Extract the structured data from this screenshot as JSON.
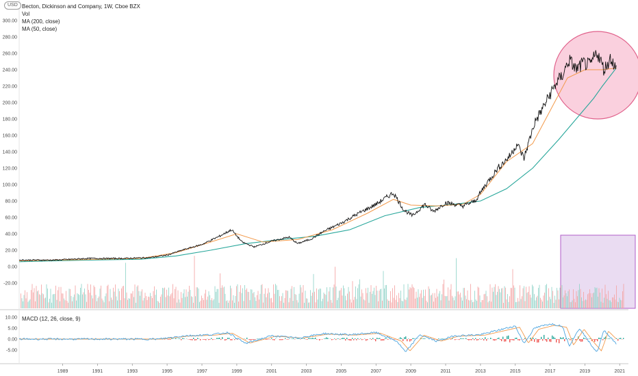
{
  "header": {
    "currency": "USD",
    "title": "Becton, Dickinson and Company, 1W, Cboe BZX",
    "vol_label": "Vol",
    "ma200_label": "MA (200, close)",
    "ma50_label": "MA (50, close)",
    "macd_label": "MACD (12, 26, close, 9)"
  },
  "colors": {
    "price": "#111111",
    "ma200": "#26a69a",
    "ma50": "#f2994a",
    "vol_up": "#8fd3c8",
    "vol_down": "#f4a3a3",
    "macd": "#4aa3df",
    "signal": "#f2994a",
    "hist_up": "#26a69a",
    "hist_down": "#ef5350",
    "circle_fill": "#f8bcd0",
    "circle_stroke": "#e0608a",
    "box_fill": "#dcc4ea",
    "box_stroke": "#b05cc8"
  },
  "chart_data": {
    "type": "line",
    "x_ticks": [
      "1989",
      "1991",
      "1993",
      "1995",
      "1997",
      "1999",
      "2001",
      "2003",
      "2005",
      "2007",
      "2009",
      "2011",
      "2013",
      "2015",
      "2017",
      "2019",
      "2021"
    ],
    "price_y_ticks": [
      "300.00",
      "280.00",
      "260.00",
      "240.00",
      "220.00",
      "200.00",
      "180.00",
      "160.00",
      "140.00",
      "120.00",
      "100.00",
      "80.00",
      "60.00",
      "40.00",
      "20.00",
      "0.00",
      "-20.00"
    ],
    "macd_y_ticks": [
      "10.00",
      "5.00",
      "0.00",
      "-5.00"
    ],
    "price_ylim": [
      -20,
      300
    ],
    "macd_ylim": [
      -10,
      10
    ],
    "xlim": [
      1987.0,
      2022.0
    ],
    "series": [
      {
        "name": "Becton, Dickinson and Company",
        "x": [
          1987.0,
          1989.0,
          1991.0,
          1993.0,
          1994.5,
          1995.5,
          1996.5,
          1997.5,
          1998.5,
          1999.2,
          1999.8,
          2000.5,
          2001.5,
          2002.5,
          2003.0,
          2003.8,
          2004.5,
          2005.5,
          2006.5,
          2007.5,
          2008.5,
          2009.1,
          2009.6,
          2010.3,
          2010.8,
          2011.5,
          2012.5,
          2013.2,
          2013.8,
          2014.5,
          2015.2,
          2015.6,
          2016.0,
          2016.6,
          2017.0,
          2017.5,
          2017.9,
          2018.2,
          2018.6,
          2019.0,
          2019.4,
          2019.8,
          2020.2,
          2020.6,
          2021.0,
          2021.3
        ],
        "values": [
          8,
          8,
          10,
          10,
          11,
          14,
          21,
          27,
          37,
          45,
          30,
          24,
          31,
          36,
          28,
          34,
          43,
          53,
          65,
          76,
          90,
          69,
          62,
          76,
          67,
          78,
          74,
          80,
          100,
          120,
          135,
          150,
          132,
          175,
          190,
          210,
          225,
          233,
          252,
          240,
          248,
          245,
          262,
          240,
          255,
          240
        ]
      },
      {
        "name": "MA (200, close)",
        "x": [
          1987.0,
          1991.0,
          1994.0,
          1996.0,
          1998.0,
          2000.0,
          2002.0,
          2004.0,
          2006.0,
          2008.0,
          2010.0,
          2012.0,
          2013.5,
          2015.0,
          2016.5,
          2018.0,
          2019.0,
          2020.0,
          2020.5,
          2021.3
        ],
        "values": [
          6,
          8,
          9,
          13,
          20,
          28,
          33,
          37,
          45,
          62,
          72,
          76,
          80,
          95,
          120,
          155,
          180,
          205,
          220,
          242
        ]
      },
      {
        "name": "MA (50, close)",
        "x": [
          1987.0,
          1994.0,
          1996.0,
          1998.0,
          1999.5,
          2001.0,
          2003.0,
          2005.0,
          2007.0,
          2008.5,
          2009.5,
          2011.0,
          2012.5,
          2013.5,
          2015.0,
          2016.5,
          2017.5,
          2018.5,
          2019.5,
          2020.5,
          2021.3
        ],
        "values": [
          7,
          10,
          17,
          30,
          40,
          30,
          33,
          45,
          65,
          82,
          75,
          74,
          76,
          88,
          128,
          150,
          190,
          230,
          240,
          240,
          242
        ]
      }
    ],
    "macd_series": [
      {
        "name": "MACD",
        "x": [
          1987.0,
          1995.0,
          1996.5,
          1998.0,
          1999.0,
          2000.0,
          2001.5,
          2003.0,
          2004.5,
          2006.0,
          2007.5,
          2008.7,
          2009.2,
          2010.0,
          2011.0,
          2012.0,
          2013.5,
          2014.5,
          2015.5,
          2016.0,
          2016.6,
          2017.5,
          2018.2,
          2018.6,
          2019.2,
          2019.8,
          2020.2,
          2020.6,
          2021.3
        ],
        "values": [
          0,
          0,
          1.5,
          2,
          3,
          -2,
          1.5,
          0.5,
          2.5,
          2,
          3,
          -1,
          -6,
          2,
          -1,
          1.5,
          2,
          4,
          6,
          -2,
          5,
          7,
          6,
          -3,
          5,
          -2,
          -6,
          4,
          -2
        ]
      }
    ]
  }
}
